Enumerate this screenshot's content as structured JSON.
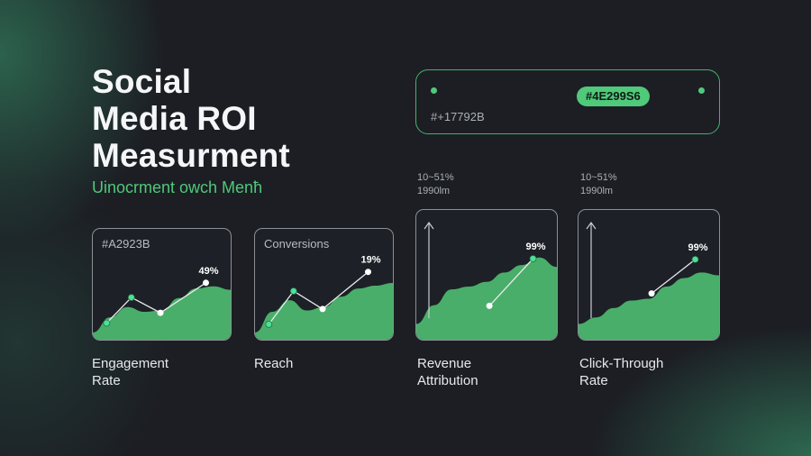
{
  "colors": {
    "background": "#1c1e24",
    "accent": "#4AE299",
    "card_border": "#8b9096"
  },
  "title_lines": [
    "Social",
    "Media ROI",
    "Measurment"
  ],
  "subtitle": "Uinocrment owch Menћ",
  "header_panel": {
    "pill_label": "#4E299S6",
    "hex_label": "#+17792B"
  },
  "ranges": [
    {
      "line1": "10~51%",
      "line2": "1990lm"
    },
    {
      "line1": "10~51%",
      "line2": "1990lm"
    }
  ],
  "cards": [
    {
      "label": "#A2923B",
      "value_label": "49%",
      "points": [
        [
          0,
          12
        ],
        [
          1,
          52
        ],
        [
          2,
          28
        ],
        [
          3,
          75
        ]
      ],
      "area": [
        8,
        30,
        45,
        38,
        40,
        58,
        72,
        75,
        70
      ],
      "axis_arrow": false,
      "metric_lines": [
        "Engagement",
        "Rate"
      ]
    },
    {
      "label": "Conversions",
      "value_label": "19%",
      "points": [
        [
          0,
          10
        ],
        [
          1,
          62
        ],
        [
          2,
          34
        ],
        [
          3,
          92
        ]
      ],
      "area": [
        8,
        38,
        55,
        40,
        45,
        60,
        72,
        76,
        80
      ],
      "axis_arrow": false,
      "metric_lines": [
        "Reach"
      ]
    },
    {
      "label": "",
      "value_label": "99%",
      "points": [
        [
          0,
          30
        ],
        [
          1,
          87
        ]
      ],
      "area": [
        15,
        35,
        52,
        55,
        60,
        70,
        78,
        86,
        76
      ],
      "axis_arrow": true,
      "metric_lines": [
        "Revenue",
        "Attribution"
      ]
    },
    {
      "label": "",
      "value_label": "99%",
      "points": [
        [
          0,
          45
        ],
        [
          1,
          86
        ]
      ],
      "area": [
        15,
        22,
        32,
        40,
        42,
        55,
        64,
        70,
        67
      ],
      "axis_arrow": true,
      "metric_lines": [
        "Click-Through",
        "Rate"
      ]
    }
  ]
}
